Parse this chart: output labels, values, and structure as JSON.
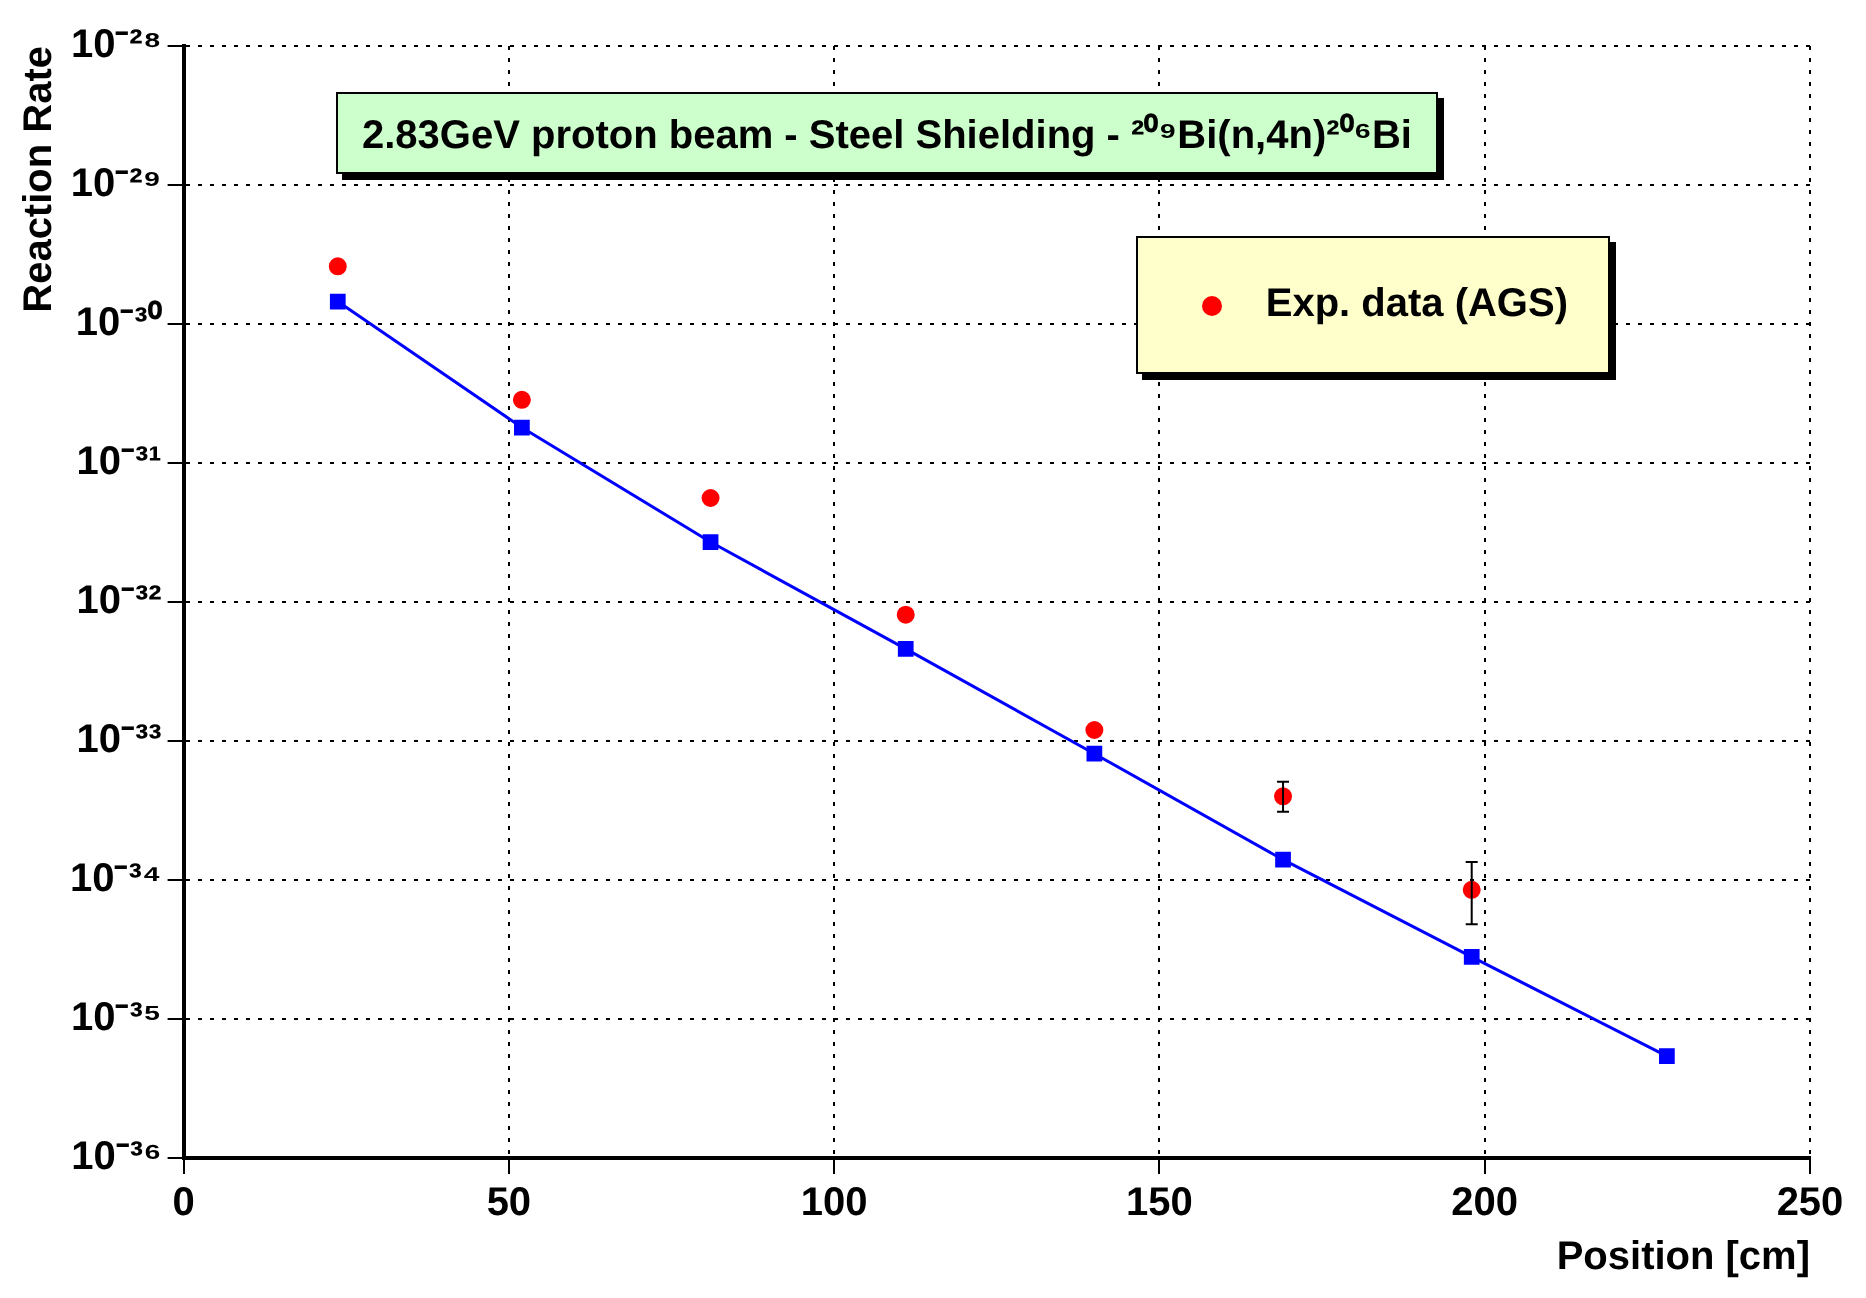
{
  "chart_data": {
    "type": "scatter",
    "title": "2.83GeV proton beam - Steel Shielding - ²⁰⁹Bi(n,4n)²⁰⁶Bi",
    "xlabel": "Position [cm]",
    "ylabel": "Reaction Rate",
    "series": [
      {
        "type": "line",
        "color": "#0000ff",
        "marker": "square",
        "line_style": "solid",
        "x": [
          23.7,
          52,
          81,
          111,
          140,
          169,
          198,
          228
        ],
        "values": [
          1.45e-30,
          1.8e-31,
          2.7e-32,
          4.6e-33,
          8.1e-34,
          1.4e-34,
          2.8e-35,
          5.4e-36
        ]
      },
      {
        "name": "Exp. data (AGS)",
        "color": "#ff0000",
        "marker": "circle",
        "x": [
          23.7,
          52,
          81,
          111,
          140,
          169,
          198
        ],
        "values": [
          2.6e-30,
          2.85e-31,
          5.6e-32,
          8.1e-33,
          1.2e-33,
          4e-34,
          8.5e-35
        ],
        "errors": [
          null,
          null,
          null,
          null,
          null,
          [
            3.1e-34,
            5.1e-34
          ],
          [
            4.8e-35,
            1.35e-34
          ]
        ]
      }
    ],
    "log": "y",
    "grid": true,
    "legend": "top right",
    "xlim": [
      0,
      250
    ],
    "xticks": [
      0,
      50,
      100,
      150,
      200,
      250
    ],
    "ylim": [
      1e-36,
      1e-28
    ],
    "yticks": [
      {
        "value": 1e-36,
        "label": "10⁻³⁶"
      },
      {
        "value": 1e-35,
        "label": "10⁻³⁵"
      },
      {
        "value": 1e-34,
        "label": "10⁻³⁴"
      },
      {
        "value": 1e-33,
        "label": "10⁻³³"
      },
      {
        "value": 1e-32,
        "label": "10⁻³²"
      },
      {
        "value": 1e-31,
        "label": "10⁻³¹"
      },
      {
        "value": 1e-30,
        "label": "10⁻³⁰"
      },
      {
        "value": 1e-29,
        "label": "10⁻²⁹"
      },
      {
        "value": 1e-28,
        "label": "10⁻²⁸"
      }
    ]
  }
}
